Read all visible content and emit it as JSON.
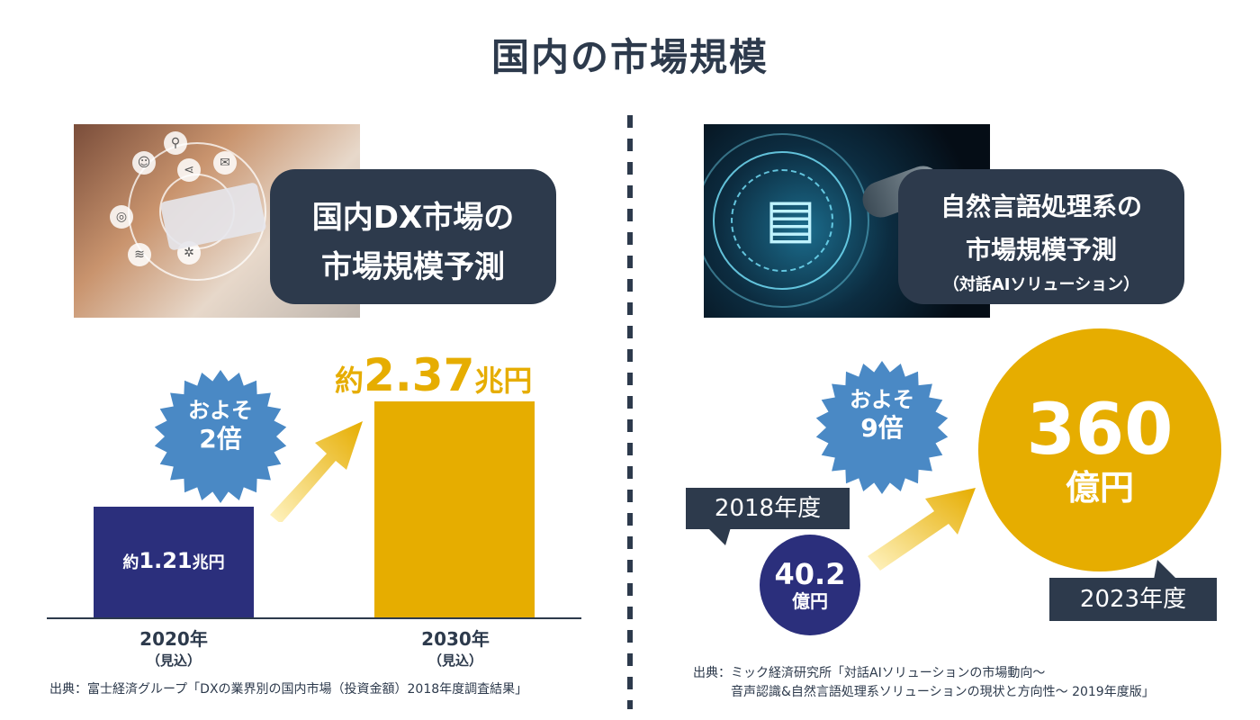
{
  "title": "国内の市場規模",
  "left": {
    "heading_line1": "国内DX市場の",
    "heading_line2": "市場規模予測",
    "burst_line1": "およそ",
    "burst_line2": "2倍",
    "big_prefix": "約",
    "big_value": "2.37",
    "big_unit": "兆円",
    "bar1_prefix": "約",
    "bar1_value": "1.21",
    "bar1_unit": "兆円",
    "x1": "2020年",
    "x1_sub": "（見込）",
    "x2": "2030年",
    "x2_sub": "（見込）",
    "source": "出典：富士経済グループ「DXの業界別の国内市場（投資金額）2018年度調査結果」"
  },
  "right": {
    "heading_line1": "自然言語処理系の",
    "heading_line2": "市場規模予測",
    "heading_line3": "（対話AIソリューション）",
    "burst_line1": "およそ",
    "burst_line2": "9倍",
    "tag1": "2018年度",
    "tag2": "2023年度",
    "small_value": "40.2",
    "small_unit": "億円",
    "large_value": "360",
    "large_unit": "億円",
    "source_line1": "出典：ミック経済研究所「対話AIソリューションの市場動向～",
    "source_line2": "音声認識&自然言語処理系ソリューションの現状と方向性～ 2019年度版」"
  },
  "colors": {
    "navy": "#2b2f7c",
    "gold": "#e6ad00",
    "slate": "#2d3a4c",
    "burst_blue": "#4a89c5"
  },
  "chart_data": [
    {
      "type": "bar",
      "categories": [
        "2020年（見込）",
        "2030年（見込）"
      ],
      "values": [
        1.21,
        2.37
      ],
      "unit": "兆円",
      "title": "国内DX市場の市場規模予測",
      "annotation": "およそ2倍"
    },
    {
      "type": "bubble",
      "categories": [
        "2018年度",
        "2023年度"
      ],
      "values": [
        40.2,
        360
      ],
      "unit": "億円",
      "title": "自然言語処理系の市場規模予測（対話AIソリューション）",
      "annotation": "およそ9倍"
    }
  ]
}
